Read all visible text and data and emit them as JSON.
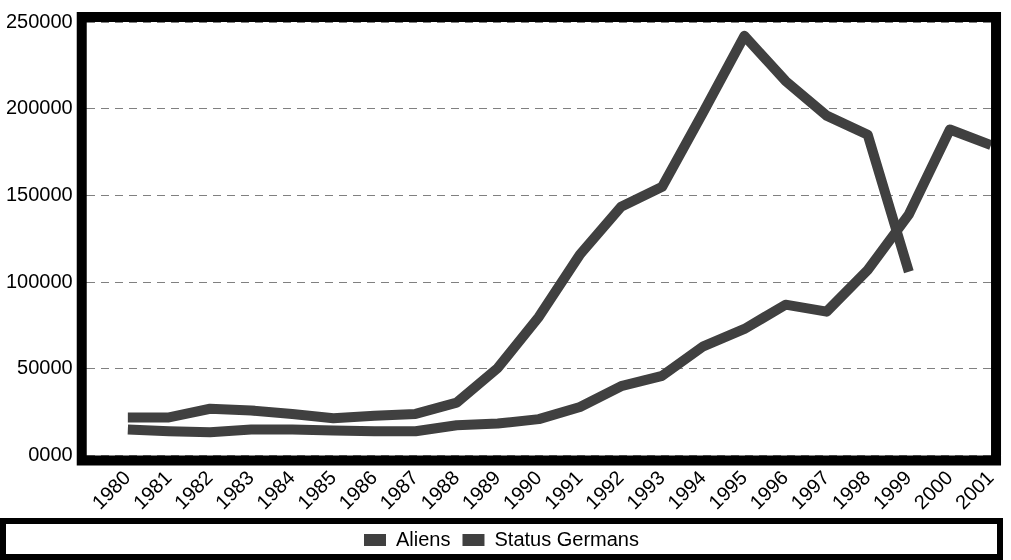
{
  "chart_data": {
    "type": "line",
    "categories": [
      "1980",
      "1981",
      "1982",
      "1983",
      "1984",
      "1985",
      "1986",
      "1987",
      "1988",
      "1989",
      "1990",
      "1991",
      "1992",
      "1993",
      "1994",
      "1995",
      "1996",
      "1997",
      "1998",
      "1999",
      "2000",
      "2001"
    ],
    "series": [
      {
        "name": "Aliens",
        "color": "#404040",
        "values": [
          15000,
          14000,
          13500,
          15000,
          15000,
          14500,
          14000,
          14000,
          17500,
          18500,
          21000,
          28000,
          40000,
          46000,
          63000,
          73000,
          87000,
          83000,
          107000,
          139000,
          188000,
          179000
        ]
      },
      {
        "name": "Status Germans",
        "color": "#404040",
        "values": [
          22000,
          22000,
          27000,
          26000,
          24000,
          21500,
          23000,
          24000,
          30500,
          50500,
          80000,
          116000,
          143500,
          155000,
          198000,
          242000,
          216000,
          196000,
          185000,
          106000,
          null,
          null
        ]
      }
    ],
    "ylim": [
      0,
      250000
    ],
    "yticks": [
      {
        "value": 0,
        "label": "0000"
      },
      50000,
      100000,
      150000,
      200000,
      250000
    ],
    "grid": "y",
    "legend": "bottom",
    "marker": "none",
    "line_style": "solid"
  }
}
